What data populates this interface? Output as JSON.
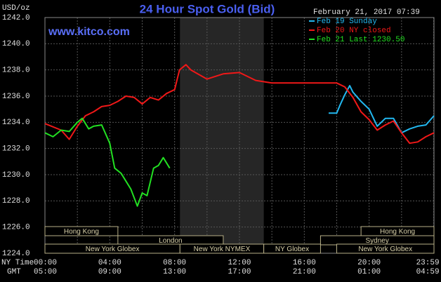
{
  "chart_data": {
    "type": "line",
    "title": "24 Hour Spot Gold (Bid)",
    "y_label": "USD/oz",
    "website": "www.kitco.com",
    "timestamp": "February 21, 2017 07:39",
    "xlim": [
      0,
      24
    ],
    "ylim": [
      1224,
      1242
    ],
    "xticks": [
      {
        "value": 0,
        "label": "00:00"
      },
      {
        "value": 4,
        "label": "04:00"
      },
      {
        "value": 8,
        "label": "08:00"
      },
      {
        "value": 12,
        "label": "12:00"
      },
      {
        "value": 16,
        "label": "16:00"
      },
      {
        "value": 20,
        "label": "20:00"
      },
      {
        "value": 23.983,
        "label": "23:59"
      }
    ],
    "x_minor_grid": [
      2,
      6,
      10,
      14,
      18,
      22
    ],
    "x_row_label": "NY Time",
    "x2_row_label": "GMT",
    "x2_labels": [
      "05:00",
      "09:00",
      "13:00",
      "17:00",
      "21:00",
      "01:00",
      "04:59"
    ],
    "yticks": [
      {
        "value": 1224,
        "label": "1224.0"
      },
      {
        "value": 1226,
        "label": "1226.0"
      },
      {
        "value": 1228,
        "label": "1228.0"
      },
      {
        "value": 1230,
        "label": "1230.0"
      },
      {
        "value": 1232,
        "label": "1232.0"
      },
      {
        "value": 1234,
        "label": "1234.0"
      },
      {
        "value": 1236,
        "label": "1236.0"
      },
      {
        "value": 1238,
        "label": "1238.0"
      },
      {
        "value": 1240,
        "label": "1240.0"
      },
      {
        "value": 1242,
        "label": "1242.0"
      }
    ],
    "grid": true,
    "shaded_range": [
      8.33,
      13.5
    ],
    "sessions": [
      {
        "label": "Hong Kong",
        "start": 0,
        "end": 4.5,
        "row": 0
      },
      {
        "label": "Hong Kong",
        "start": 19.5,
        "end": 24,
        "row": 0
      },
      {
        "label": "London",
        "start": 4.5,
        "end": 11,
        "row": 1
      },
      {
        "label": "Sydney",
        "start": 17,
        "end": 24,
        "row": 1
      },
      {
        "label": "New York Globex",
        "start": 0,
        "end": 8.33,
        "row": 2
      },
      {
        "label": "New York NYMEX",
        "start": 8.33,
        "end": 13.5,
        "row": 2
      },
      {
        "label": "NY Globex",
        "start": 13.5,
        "end": 17,
        "row": 2
      },
      {
        "label": "New York Globex",
        "start": 18,
        "end": 24,
        "row": 2
      }
    ],
    "series": [
      {
        "name": "Feb 19 Sunday",
        "color": "#22b8f0",
        "x": [
          17.5,
          18,
          18.2,
          18.5,
          18.8,
          19,
          19.5,
          20,
          20.5,
          21,
          21.5,
          22,
          22.5,
          23,
          23.5,
          24
        ],
        "values": [
          1234.7,
          1234.7,
          1235.3,
          1236.1,
          1236.8,
          1236.3,
          1235.6,
          1235.0,
          1233.7,
          1234.3,
          1234.3,
          1233.2,
          1233.5,
          1233.7,
          1233.8,
          1234.5
        ]
      },
      {
        "name": "Feb 20 NY closed",
        "color": "#f01818",
        "x": [
          0,
          1,
          1.5,
          2,
          2.5,
          3,
          3.5,
          4,
          4.5,
          5,
          5.5,
          6,
          6.5,
          7,
          7.5,
          8,
          8.3,
          8.7,
          9,
          10,
          11,
          12,
          13,
          14,
          16,
          18,
          18.5,
          19,
          19.5,
          20,
          20.5,
          21,
          21.5,
          22,
          22.5,
          23,
          23.5,
          24
        ],
        "values": [
          1233.9,
          1233.4,
          1232.7,
          1233.7,
          1234.5,
          1234.8,
          1235.2,
          1235.3,
          1235.6,
          1236.0,
          1235.9,
          1235.4,
          1235.9,
          1235.7,
          1236.2,
          1236.5,
          1238.0,
          1238.4,
          1238.0,
          1237.3,
          1237.7,
          1237.8,
          1237.2,
          1237.0,
          1237.0,
          1237.0,
          1236.7,
          1235.9,
          1234.8,
          1234.2,
          1233.4,
          1233.8,
          1234.1,
          1233.2,
          1232.4,
          1232.5,
          1232.9,
          1233.2
        ]
      },
      {
        "name": "Feb 21 Last 1230.50",
        "color": "#22e022",
        "x": [
          0,
          0.5,
          1,
          1.5,
          2,
          2.3,
          2.7,
          3,
          3.5,
          4,
          4.3,
          4.7,
          5,
          5.3,
          5.7,
          6,
          6.3,
          6.7,
          7,
          7.3,
          7.7
        ],
        "values": [
          1233.2,
          1232.9,
          1233.4,
          1233.3,
          1234.0,
          1234.3,
          1233.5,
          1233.7,
          1233.8,
          1232.4,
          1230.5,
          1230.1,
          1229.5,
          1228.9,
          1227.6,
          1228.6,
          1228.4,
          1230.5,
          1230.7,
          1231.3,
          1230.5
        ]
      }
    ]
  }
}
